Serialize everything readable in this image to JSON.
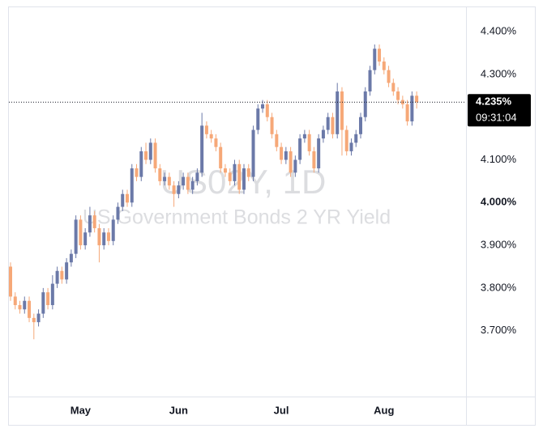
{
  "chart_data": {
    "type": "candlestick",
    "watermark_title": "US02Y, 1D",
    "watermark_subtitle": "US Government Bonds 2 YR Yield",
    "up_color": "#6b79a8",
    "down_color": "#f6a878",
    "ylim": [
      3.546,
      4.457
    ],
    "yticks": [
      {
        "value": 3.7,
        "label": "3.700%"
      },
      {
        "value": 3.8,
        "label": "3.800%"
      },
      {
        "value": 3.9,
        "label": "3.900%"
      },
      {
        "value": 4.0,
        "label": "4.000%"
      },
      {
        "value": 4.1,
        "label": "4.100%"
      },
      {
        "value": 4.3,
        "label": "4.300%"
      },
      {
        "value": 4.4,
        "label": "4.400%"
      }
    ],
    "current_price": 4.235,
    "current_price_label": "4.235%",
    "current_time": "09:31:04",
    "categories": [
      null,
      null,
      null,
      null,
      null,
      null,
      null,
      null,
      null,
      null,
      null,
      null,
      null,
      null,
      null,
      "May",
      null,
      null,
      null,
      null,
      null,
      null,
      null,
      null,
      null,
      null,
      null,
      null,
      null,
      null,
      null,
      null,
      null,
      null,
      null,
      null,
      "Jun",
      null,
      null,
      null,
      null,
      null,
      null,
      null,
      null,
      null,
      null,
      null,
      null,
      null,
      null,
      null,
      null,
      null,
      null,
      null,
      null,
      null,
      "Jul",
      null,
      null,
      null,
      null,
      null,
      null,
      null,
      null,
      null,
      null,
      null,
      null,
      null,
      null,
      null,
      null,
      null,
      null,
      null,
      null,
      null,
      "Aug",
      null,
      null,
      null,
      null,
      null,
      null,
      null
    ],
    "open": [
      3.85,
      3.78,
      3.76,
      3.75,
      3.77,
      3.73,
      3.72,
      3.74,
      3.79,
      3.76,
      3.81,
      3.84,
      3.82,
      3.86,
      3.88,
      3.96,
      3.9,
      3.93,
      3.97,
      3.94,
      3.9,
      3.93,
      3.91,
      3.96,
      3.99,
      4.02,
      4.0,
      4.08,
      4.06,
      4.12,
      4.1,
      4.14,
      4.08,
      4.05,
      4.06,
      4.04,
      4.02,
      4.04,
      4.06,
      4.03,
      4.05,
      4.07,
      4.18,
      4.16,
      4.15,
      4.13,
      4.08,
      4.07,
      4.05,
      4.09,
      4.03,
      4.08,
      4.06,
      4.17,
      4.22,
      4.23,
      4.2,
      4.16,
      4.13,
      4.1,
      4.12,
      4.07,
      4.1,
      4.15,
      4.16,
      4.12,
      4.08,
      4.15,
      4.17,
      4.2,
      4.16,
      4.26,
      4.17,
      4.12,
      4.14,
      4.16,
      4.2,
      4.26,
      4.31,
      4.36,
      4.33,
      4.31,
      4.28,
      4.26,
      4.24,
      4.23,
      4.19,
      4.25
    ],
    "high": [
      3.86,
      3.79,
      3.77,
      3.78,
      3.78,
      3.74,
      3.75,
      3.8,
      3.8,
      3.83,
      3.85,
      3.85,
      3.87,
      3.89,
      3.97,
      3.97,
      3.94,
      3.99,
      3.98,
      3.95,
      3.94,
      3.94,
      3.97,
      4.0,
      4.03,
      4.03,
      4.09,
      4.09,
      4.13,
      4.14,
      4.15,
      4.15,
      4.09,
      4.07,
      4.07,
      4.05,
      4.05,
      4.07,
      4.07,
      4.06,
      4.08,
      4.21,
      4.19,
      4.17,
      4.16,
      4.14,
      4.09,
      4.08,
      4.1,
      4.1,
      4.09,
      4.09,
      4.18,
      4.23,
      4.24,
      4.24,
      4.21,
      4.17,
      4.14,
      4.13,
      4.13,
      4.11,
      4.16,
      4.17,
      4.17,
      4.13,
      4.16,
      4.18,
      4.21,
      4.21,
      4.28,
      4.27,
      4.18,
      4.15,
      4.17,
      4.21,
      4.27,
      4.32,
      4.37,
      4.37,
      4.34,
      4.32,
      4.29,
      4.27,
      4.25,
      4.24,
      4.26,
      4.26
    ],
    "low": [
      3.77,
      3.75,
      3.74,
      3.74,
      3.72,
      3.68,
      3.71,
      3.73,
      3.75,
      3.75,
      3.8,
      3.81,
      3.81,
      3.85,
      3.87,
      3.89,
      3.89,
      3.92,
      3.93,
      3.86,
      3.89,
      3.9,
      3.9,
      3.95,
      3.98,
      3.99,
      3.99,
      4.05,
      4.05,
      4.09,
      4.09,
      4.07,
      4.04,
      4.04,
      4.03,
      3.99,
      4.01,
      4.03,
      4.02,
      4.02,
      4.04,
      4.06,
      4.15,
      4.14,
      4.12,
      4.07,
      4.06,
      4.04,
      4.04,
      4.02,
      4.02,
      4.05,
      4.05,
      4.16,
      4.21,
      4.19,
      4.15,
      4.12,
      4.09,
      4.09,
      4.06,
      4.06,
      4.09,
      4.14,
      4.11,
      4.07,
      4.07,
      4.14,
      4.16,
      4.15,
      4.15,
      4.11,
      4.11,
      4.11,
      4.13,
      4.15,
      4.19,
      4.25,
      4.3,
      4.32,
      4.3,
      4.27,
      4.25,
      4.23,
      4.22,
      4.18,
      4.18,
      4.22
    ],
    "close": [
      3.78,
      3.76,
      3.75,
      3.77,
      3.73,
      3.72,
      3.74,
      3.79,
      3.76,
      3.81,
      3.84,
      3.82,
      3.86,
      3.88,
      3.96,
      3.9,
      3.93,
      3.97,
      3.94,
      3.9,
      3.93,
      3.91,
      3.96,
      3.99,
      4.02,
      4.0,
      4.08,
      4.06,
      4.12,
      4.1,
      4.14,
      4.08,
      4.05,
      4.06,
      4.04,
      4.02,
      4.04,
      4.06,
      4.03,
      4.05,
      4.07,
      4.18,
      4.16,
      4.15,
      4.13,
      4.08,
      4.07,
      4.05,
      4.09,
      4.03,
      4.08,
      4.06,
      4.17,
      4.22,
      4.23,
      4.2,
      4.16,
      4.13,
      4.1,
      4.12,
      4.07,
      4.1,
      4.15,
      4.16,
      4.12,
      4.08,
      4.15,
      4.17,
      4.2,
      4.16,
      4.26,
      4.17,
      4.12,
      4.14,
      4.16,
      4.2,
      4.26,
      4.31,
      4.36,
      4.33,
      4.31,
      4.28,
      4.26,
      4.24,
      4.23,
      4.19,
      4.25,
      4.235
    ]
  }
}
